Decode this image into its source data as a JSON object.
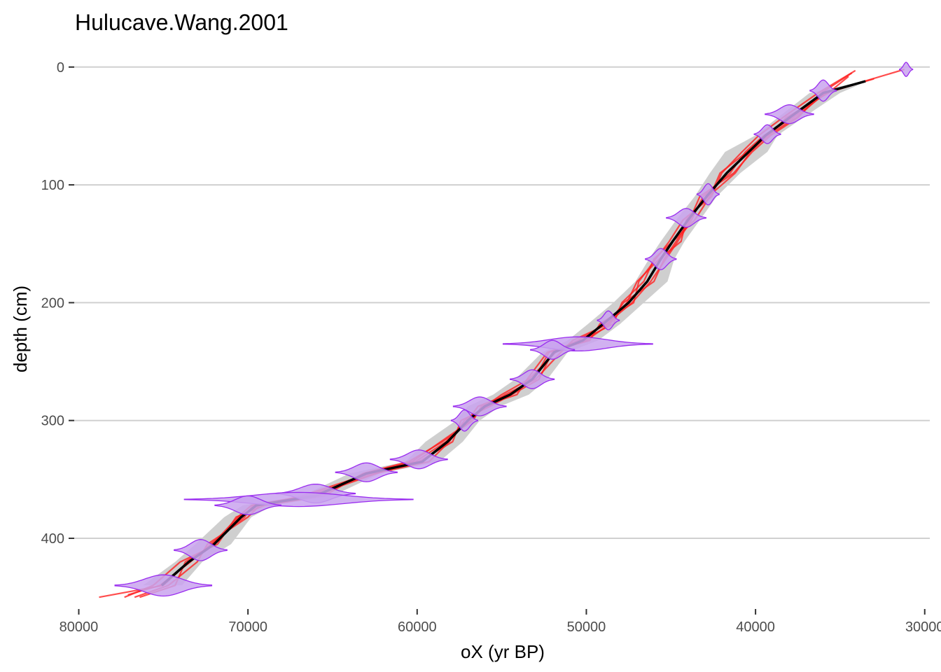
{
  "chart_data": {
    "type": "line",
    "title": "Hulucave.Wang.2001",
    "xlabel": "oX (yr BP)",
    "ylabel": "depth (cm)",
    "x_reversed": true,
    "y_reversed": true,
    "xlim": [
      80600,
      29700
    ],
    "ylim": [
      -7,
      460
    ],
    "x_ticks": [
      80000,
      70000,
      60000,
      50000,
      40000,
      30000
    ],
    "x_tick_labels": [
      "80000",
      "70000",
      "60000",
      "50000",
      "40000",
      "30000"
    ],
    "y_ticks": [
      0,
      100,
      200,
      300,
      400
    ],
    "y_tick_labels": [
      "0",
      "100",
      "200",
      "300",
      "400"
    ],
    "grid": "horizontal major gridlines",
    "colors": {
      "median": "#000000",
      "ensemble": "#ff2020",
      "uncertainty_band": "#cfcfcf",
      "age_density_fill": "#c9a3ee",
      "age_density_stroke": "#9a2cf0",
      "gridline": "#d0d0d0"
    },
    "median_line": [
      [
        75100,
        440
      ],
      [
        73500,
        420
      ],
      [
        72000,
        405
      ],
      [
        70400,
        382
      ],
      [
        69500,
        372
      ],
      [
        66000,
        364
      ],
      [
        63000,
        345
      ],
      [
        59700,
        335
      ],
      [
        58200,
        318
      ],
      [
        57000,
        300
      ],
      [
        56000,
        288
      ],
      [
        54500,
        278
      ],
      [
        53200,
        265
      ],
      [
        51900,
        242
      ],
      [
        50200,
        232
      ],
      [
        49000,
        218
      ],
      [
        47500,
        200
      ],
      [
        46400,
        182
      ],
      [
        45600,
        163
      ],
      [
        44900,
        148
      ],
      [
        44000,
        130
      ],
      [
        42900,
        110
      ],
      [
        41700,
        90
      ],
      [
        40400,
        72
      ],
      [
        39400,
        58
      ],
      [
        38000,
        43
      ],
      [
        36000,
        22
      ],
      [
        33500,
        12
      ]
    ],
    "uncertainty_band": {
      "upper": [
        [
          73900,
          440
        ],
        [
          72700,
          420
        ],
        [
          71000,
          405
        ],
        [
          69800,
          382
        ],
        [
          68500,
          372
        ],
        [
          65000,
          364
        ],
        [
          62200,
          345
        ],
        [
          58700,
          335
        ],
        [
          57300,
          318
        ],
        [
          56300,
          300
        ],
        [
          55100,
          288
        ],
        [
          53400,
          278
        ],
        [
          52300,
          265
        ],
        [
          51100,
          242
        ],
        [
          49300,
          232
        ],
        [
          48000,
          218
        ],
        [
          46600,
          200
        ],
        [
          45200,
          182
        ],
        [
          44800,
          163
        ],
        [
          44200,
          148
        ],
        [
          43300,
          130
        ],
        [
          42300,
          110
        ],
        [
          40900,
          90
        ],
        [
          39300,
          72
        ],
        [
          38700,
          58
        ],
        [
          37200,
          43
        ],
        [
          35000,
          22
        ],
        [
          33400,
          12
        ]
      ],
      "lower": [
        [
          76200,
          440
        ],
        [
          74300,
          420
        ],
        [
          73100,
          405
        ],
        [
          71400,
          382
        ],
        [
          70300,
          372
        ],
        [
          66800,
          364
        ],
        [
          64000,
          345
        ],
        [
          60700,
          335
        ],
        [
          59500,
          318
        ],
        [
          57700,
          300
        ],
        [
          57000,
          288
        ],
        [
          55500,
          278
        ],
        [
          54200,
          265
        ],
        [
          52600,
          242
        ],
        [
          51100,
          232
        ],
        [
          49900,
          218
        ],
        [
          48400,
          200
        ],
        [
          47100,
          182
        ],
        [
          46300,
          163
        ],
        [
          45600,
          148
        ],
        [
          44700,
          130
        ],
        [
          43600,
          110
        ],
        [
          42700,
          90
        ],
        [
          41800,
          72
        ],
        [
          40000,
          58
        ],
        [
          38700,
          43
        ],
        [
          36800,
          22
        ],
        [
          33600,
          12
        ]
      ]
    },
    "ensemble_lines": [
      [
        [
          78800,
          450
        ],
        [
          75000,
          440
        ],
        [
          73500,
          420
        ],
        [
          72100,
          405
        ],
        [
          70600,
          382
        ],
        [
          69800,
          372
        ],
        [
          66500,
          364
        ],
        [
          62500,
          345
        ],
        [
          59300,
          335
        ],
        [
          58100,
          318
        ],
        [
          57200,
          300
        ],
        [
          55900,
          288
        ],
        [
          54800,
          278
        ],
        [
          53000,
          265
        ],
        [
          51500,
          242
        ],
        [
          50800,
          232
        ],
        [
          48700,
          218
        ],
        [
          47800,
          200
        ],
        [
          46000,
          182
        ],
        [
          45400,
          163
        ],
        [
          44700,
          148
        ],
        [
          43900,
          130
        ],
        [
          43300,
          110
        ],
        [
          41300,
          90
        ],
        [
          40200,
          72
        ],
        [
          39100,
          58
        ],
        [
          37500,
          43
        ],
        [
          36100,
          22
        ],
        [
          34300,
          5
        ]
      ],
      [
        [
          77300,
          450
        ],
        [
          75600,
          440
        ],
        [
          74000,
          420
        ],
        [
          71800,
          405
        ],
        [
          70700,
          382
        ],
        [
          69000,
          372
        ],
        [
          65500,
          364
        ],
        [
          63200,
          345
        ],
        [
          60500,
          335
        ],
        [
          58500,
          318
        ],
        [
          56700,
          300
        ],
        [
          56200,
          288
        ],
        [
          54100,
          278
        ],
        [
          53500,
          265
        ],
        [
          52300,
          242
        ],
        [
          49800,
          232
        ],
        [
          49200,
          218
        ],
        [
          47200,
          200
        ],
        [
          46900,
          182
        ],
        [
          45900,
          163
        ],
        [
          45100,
          148
        ],
        [
          44300,
          130
        ],
        [
          42600,
          110
        ],
        [
          42000,
          90
        ],
        [
          40800,
          72
        ],
        [
          39800,
          58
        ],
        [
          38400,
          43
        ],
        [
          36300,
          22
        ],
        [
          34100,
          3
        ]
      ],
      [
        [
          76700,
          450
        ],
        [
          74700,
          440
        ],
        [
          73000,
          420
        ],
        [
          72400,
          405
        ],
        [
          70000,
          382
        ],
        [
          69300,
          372
        ],
        [
          66800,
          364
        ],
        [
          62800,
          345
        ],
        [
          59900,
          335
        ],
        [
          57900,
          318
        ],
        [
          57400,
          300
        ],
        [
          55700,
          288
        ],
        [
          54400,
          278
        ],
        [
          52800,
          265
        ],
        [
          52000,
          242
        ],
        [
          50500,
          232
        ],
        [
          48800,
          218
        ],
        [
          47300,
          200
        ],
        [
          46200,
          182
        ],
        [
          45300,
          163
        ],
        [
          44600,
          148
        ],
        [
          43800,
          130
        ],
        [
          43100,
          110
        ],
        [
          41500,
          90
        ],
        [
          40600,
          72
        ],
        [
          39500,
          58
        ],
        [
          37800,
          43
        ],
        [
          35800,
          22
        ],
        [
          33000,
          10
        ]
      ],
      [
        [
          77100,
          448
        ],
        [
          75200,
          440
        ],
        [
          73400,
          420
        ],
        [
          72200,
          405
        ],
        [
          70200,
          382
        ],
        [
          69700,
          372
        ],
        [
          66200,
          364
        ],
        [
          62400,
          345
        ],
        [
          60100,
          335
        ],
        [
          58300,
          318
        ],
        [
          57000,
          300
        ],
        [
          56400,
          288
        ],
        [
          54600,
          278
        ],
        [
          53100,
          265
        ],
        [
          52200,
          242
        ],
        [
          50000,
          232
        ],
        [
          48600,
          218
        ],
        [
          47600,
          200
        ],
        [
          47000,
          182
        ],
        [
          45700,
          163
        ],
        [
          44400,
          148
        ],
        [
          44100,
          130
        ],
        [
          42800,
          110
        ],
        [
          41200,
          90
        ],
        [
          40300,
          72
        ],
        [
          39300,
          58
        ],
        [
          37600,
          43
        ],
        [
          35900,
          22
        ],
        [
          31200,
          2
        ]
      ],
      [
        [
          76400,
          450
        ],
        [
          74300,
          440
        ],
        [
          73700,
          420
        ],
        [
          72000,
          405
        ],
        [
          70500,
          382
        ],
        [
          69400,
          372
        ],
        [
          65800,
          364
        ],
        [
          63100,
          345
        ],
        [
          60300,
          335
        ],
        [
          58600,
          318
        ],
        [
          56800,
          300
        ],
        [
          56000,
          288
        ],
        [
          55000,
          278
        ],
        [
          53400,
          265
        ],
        [
          51800,
          242
        ],
        [
          50300,
          232
        ],
        [
          48400,
          218
        ],
        [
          47900,
          200
        ],
        [
          46600,
          182
        ],
        [
          46000,
          163
        ],
        [
          44900,
          148
        ],
        [
          43600,
          130
        ],
        [
          42700,
          110
        ],
        [
          42100,
          90
        ],
        [
          40500,
          72
        ],
        [
          39200,
          58
        ],
        [
          38200,
          43
        ],
        [
          35700,
          22
        ],
        [
          34500,
          8
        ]
      ]
    ],
    "age_distributions": [
      {
        "depth": 2,
        "age": 31100,
        "sd": 150,
        "height": 6
      },
      {
        "depth": 20,
        "age": 36000,
        "sd": 300,
        "height": 9
      },
      {
        "depth": 40,
        "age": 38000,
        "sd": 550,
        "height": 8
      },
      {
        "depth": 57,
        "age": 39300,
        "sd": 300,
        "height": 8
      },
      {
        "depth": 108,
        "age": 42800,
        "sd": 250,
        "height": 9
      },
      {
        "depth": 128,
        "age": 44100,
        "sd": 450,
        "height": 8
      },
      {
        "depth": 163,
        "age": 45600,
        "sd": 350,
        "height": 9
      },
      {
        "depth": 215,
        "age": 48700,
        "sd": 250,
        "height": 8
      },
      {
        "depth": 235,
        "age": 50500,
        "sd": 1700,
        "height": 6
      },
      {
        "depth": 240,
        "age": 52000,
        "sd": 500,
        "height": 8
      },
      {
        "depth": 265,
        "age": 53200,
        "sd": 500,
        "height": 8
      },
      {
        "depth": 288,
        "age": 56300,
        "sd": 600,
        "height": 8
      },
      {
        "depth": 300,
        "age": 57200,
        "sd": 300,
        "height": 9
      },
      {
        "depth": 333,
        "age": 59900,
        "sd": 650,
        "height": 8
      },
      {
        "depth": 344,
        "age": 63000,
        "sd": 700,
        "height": 8
      },
      {
        "depth": 362,
        "age": 66000,
        "sd": 900,
        "height": 8
      },
      {
        "depth": 367,
        "age": 67000,
        "sd": 2600,
        "height": 6
      },
      {
        "depth": 372,
        "age": 70000,
        "sd": 750,
        "height": 8
      },
      {
        "depth": 410,
        "age": 72800,
        "sd": 600,
        "height": 9
      },
      {
        "depth": 440,
        "age": 75000,
        "sd": 1100,
        "height": 9
      }
    ]
  }
}
